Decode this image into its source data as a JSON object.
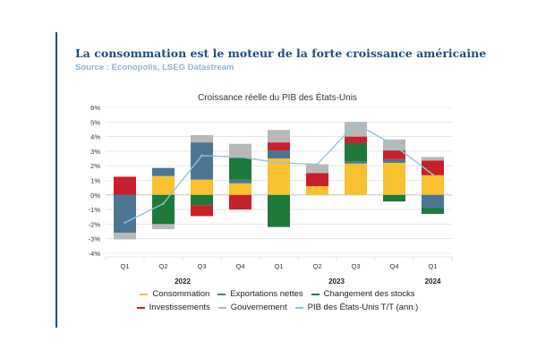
{
  "header": {
    "title": "La consommation est le moteur de la forte croissance américaine",
    "source": "Source : Econopolis, LSEG Datastream"
  },
  "colors": {
    "accent": "#1f4e79",
    "source": "#8fb3d2",
    "grid": "#d9d9d9",
    "axis": "#666666"
  },
  "chart_data": {
    "type": "bar",
    "stacked": true,
    "title": "Croissance réelle du PIB des États-Unis",
    "xlabel": "",
    "ylabel": "",
    "ylim": [
      -4,
      6
    ],
    "yticks": [
      "-4%",
      "-3%",
      "-2%",
      "-1%",
      "0%",
      "1%",
      "2%",
      "3%",
      "4%",
      "5%",
      "6%"
    ],
    "grid": true,
    "legend_position": "bottom",
    "categories": [
      "Q1",
      "Q2",
      "Q3",
      "Q4",
      "Q1",
      "Q2",
      "Q3",
      "Q4",
      "Q1"
    ],
    "year_groups": [
      {
        "label": "2022",
        "start": 0,
        "end": 3
      },
      {
        "label": "2023",
        "start": 4,
        "end": 7
      },
      {
        "label": "2024",
        "start": 8,
        "end": 8
      }
    ],
    "series": [
      {
        "name": "Consommation",
        "color": "#f7c12f",
        "values": [
          0.0,
          1.3,
          1.05,
          0.8,
          2.5,
          0.6,
          2.15,
          2.2,
          1.35
        ]
      },
      {
        "name": "Exportations nettes",
        "color": "#4a7694",
        "values": [
          -2.6,
          0.55,
          2.55,
          0.25,
          0.55,
          0.0,
          0.15,
          0.25,
          -0.9
        ]
      },
      {
        "name": "Changement des stocks",
        "color": "#1e7a3a",
        "values": [
          0.0,
          -2.0,
          -0.7,
          1.5,
          -2.2,
          0.0,
          1.25,
          -0.45,
          -0.4
        ]
      },
      {
        "name": "Investissements",
        "color": "#c8202a",
        "values": [
          1.25,
          0.0,
          -0.75,
          -1.0,
          0.55,
          0.9,
          0.45,
          0.6,
          1.0
        ]
      },
      {
        "name": "Gouvernement",
        "color": "#b8b8b8",
        "values": [
          -0.45,
          -0.35,
          0.5,
          0.95,
          0.85,
          0.6,
          1.0,
          0.75,
          0.25
        ]
      },
      {
        "name": "PIB des États-Unis T/T (ann.)",
        "type": "line",
        "color": "#8ec5de",
        "values": [
          -1.9,
          -0.6,
          2.7,
          2.6,
          2.2,
          2.1,
          4.9,
          3.4,
          1.4
        ]
      }
    ]
  }
}
